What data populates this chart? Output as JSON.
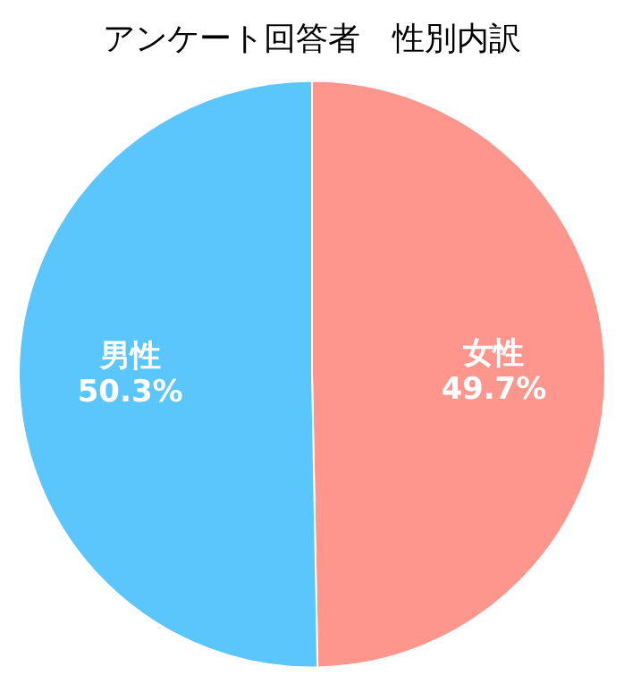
{
  "chart_data": {
    "type": "pie",
    "title": "アンケート回答者　性別内訳",
    "categories": [
      "女性",
      "男性"
    ],
    "values": [
      49.7,
      50.3
    ],
    "colors": [
      "#ff968d",
      "#5ac6fc"
    ],
    "value_labels": [
      "49.7%",
      "50.3%"
    ],
    "legend": false
  }
}
